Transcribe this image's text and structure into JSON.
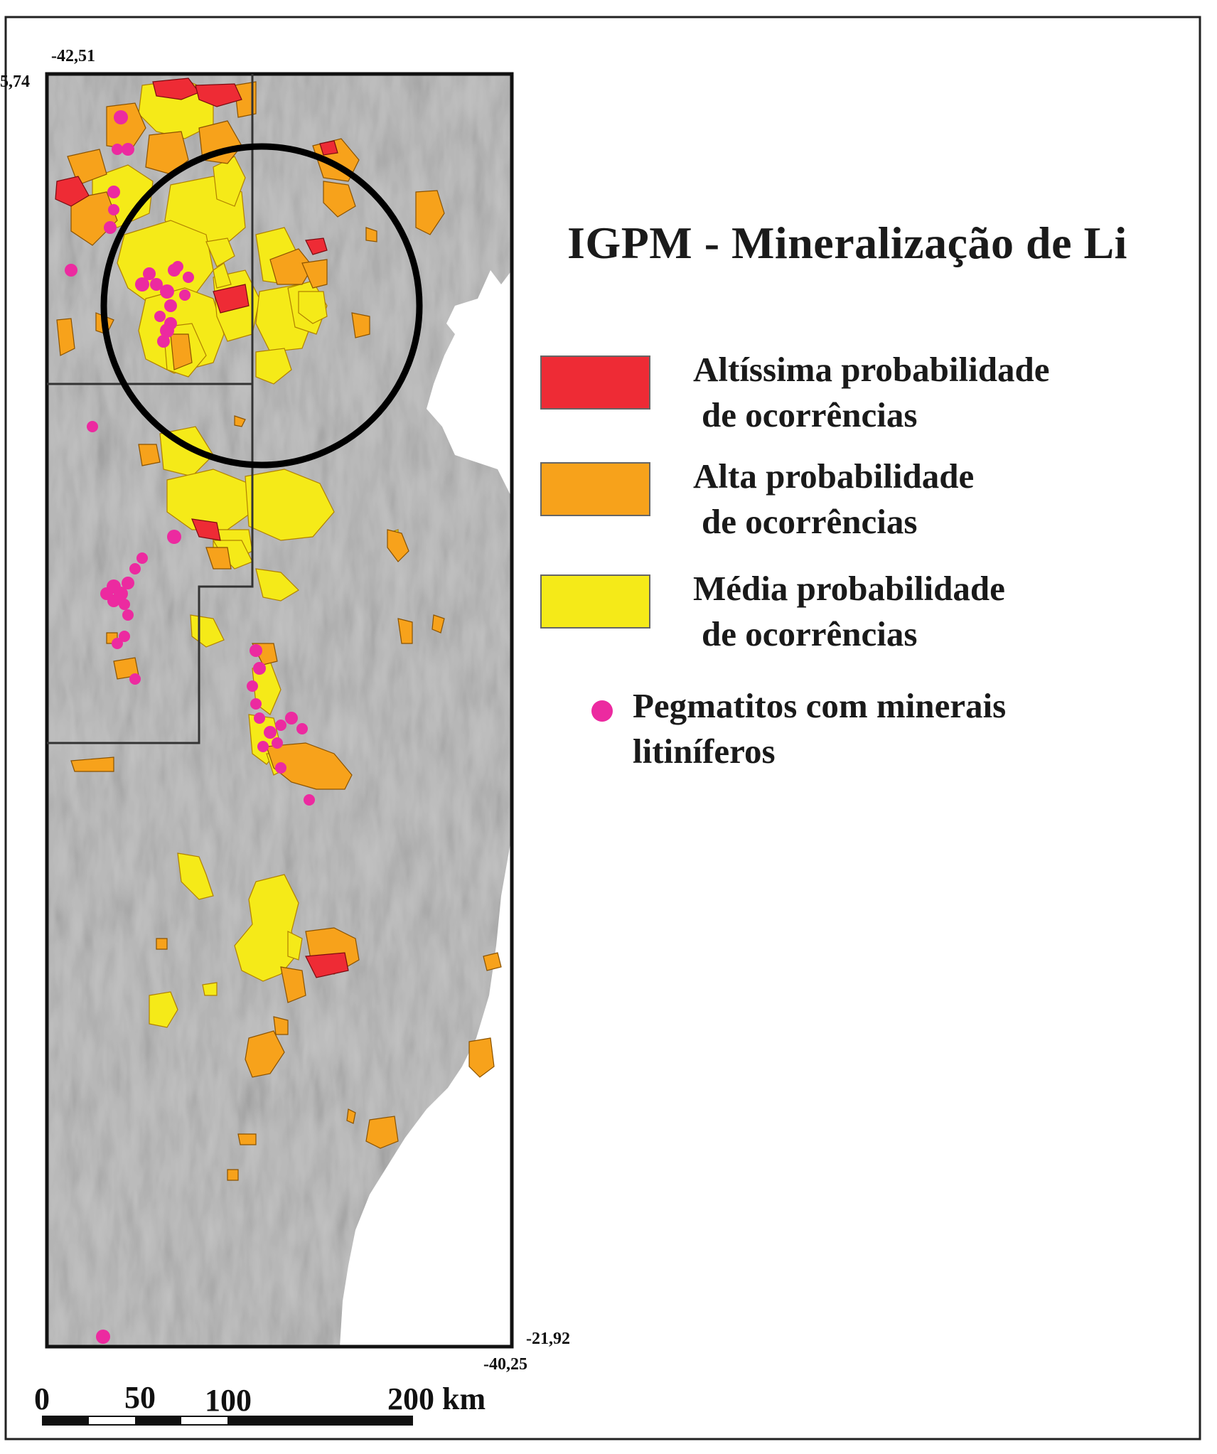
{
  "map": {
    "coords": {
      "top_lon": "-42,51",
      "top_lat": "5,74",
      "bottom_lat": "-21,92",
      "bottom_lon": "-40,25"
    }
  },
  "legend": {
    "title": "IGPM - Mineralização de Li",
    "items": [
      {
        "line1": "Altíssima probabilidade",
        "line2": "de ocorrências",
        "color": "#ee2b35"
      },
      {
        "line1": "Alta probabilidade",
        "line2": "de ocorrências",
        "color": "#f7a21b"
      },
      {
        "line1": "Média probabilidade",
        "line2": "de ocorrências",
        "color": "#f5ea18"
      }
    ],
    "pegmatite": {
      "line1": "Pegmatitos com minerais",
      "line2": "litiníferos",
      "color": "#ec2aa0"
    }
  },
  "scale_bar": {
    "labels": [
      "0",
      "50",
      "100",
      "200 km"
    ]
  },
  "colors": {
    "terrain": "#c3c3c3",
    "sea": "#ffffff",
    "red": "#ee2b35",
    "orange": "#f7a21b",
    "yellow": "#f5ea18",
    "pink": "#ec2aa0"
  }
}
